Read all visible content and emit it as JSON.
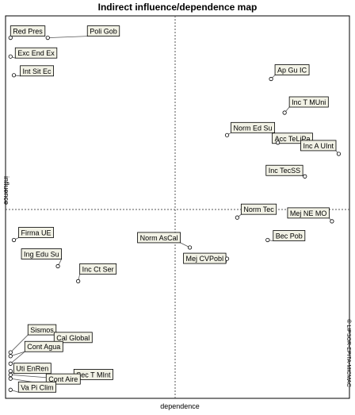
{
  "title": "Indirect influence/dependence map",
  "chart_data": {
    "type": "scatter",
    "title": "Indirect influence/dependence map",
    "xlabel": "dependence",
    "ylabel": "influence",
    "side_text": "© LIPSOR-EPITA-MICMAC",
    "xlim": [
      0,
      100
    ],
    "ylim": [
      0,
      100
    ],
    "grid": "quadrant-dividers",
    "points": [
      {
        "label": "Red Pres",
        "x": 1,
        "y": 95
      },
      {
        "label": "Poli Gob",
        "x": 12,
        "y": 95
      },
      {
        "label": "Exc End Ex",
        "x": 1,
        "y": 90
      },
      {
        "label": "Int Sit Ec",
        "x": 2,
        "y": 85
      },
      {
        "label": "Ap Gu IC",
        "x": 78,
        "y": 84
      },
      {
        "label": "Inc T MUni",
        "x": 82,
        "y": 75
      },
      {
        "label": "Norm Ed Su",
        "x": 65,
        "y": 69
      },
      {
        "label": "Acc TeLiPa",
        "x": 80,
        "y": 67
      },
      {
        "label": "Inc A UInt",
        "x": 98,
        "y": 64
      },
      {
        "label": "Inc TecSS",
        "x": 88,
        "y": 58
      },
      {
        "label": "Norm Tec",
        "x": 68,
        "y": 47
      },
      {
        "label": "Mej NE MO",
        "x": 96,
        "y": 46
      },
      {
        "label": "Bec Pob",
        "x": 77,
        "y": 41
      },
      {
        "label": "Firma UE",
        "x": 2,
        "y": 41
      },
      {
        "label": "Norm AsCal",
        "x": 54,
        "y": 39
      },
      {
        "label": "Mej CVPobl",
        "x": 65,
        "y": 36
      },
      {
        "label": "Ing Edu Su",
        "x": 15,
        "y": 34
      },
      {
        "label": "Inc Ct Ser",
        "x": 21,
        "y": 30
      },
      {
        "label": "Sismos",
        "x": 1,
        "y": 11
      },
      {
        "label": "Cal Global",
        "x": 1,
        "y": 10
      },
      {
        "label": "Cont Agua",
        "x": 1,
        "y": 8
      },
      {
        "label": "Uti EnRen",
        "x": 1,
        "y": 6
      },
      {
        "label": "Sec T MInt",
        "x": 1,
        "y": 5
      },
      {
        "label": "Cont Aire",
        "x": 1,
        "y": 4
      },
      {
        "label": "Va Pi Clim",
        "x": 1,
        "y": 1
      }
    ]
  }
}
